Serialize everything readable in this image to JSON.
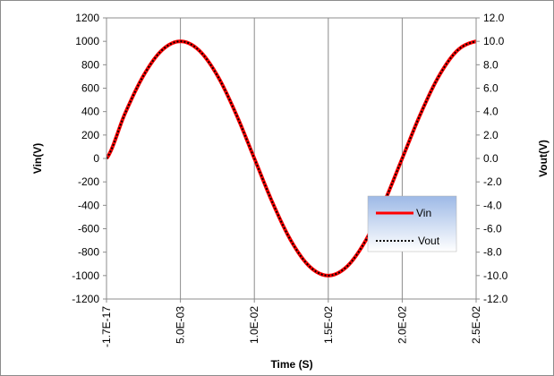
{
  "chart_data": {
    "type": "line",
    "title": "",
    "xlabel": "Time (S)",
    "ylabel_left": "Vin(V)",
    "ylabel_right": "Vout(V)",
    "xlim": [
      -1.7e-17,
      0.025
    ],
    "ylim_left": [
      -1200,
      1200
    ],
    "ylim_right": [
      -12,
      12
    ],
    "x_ticks": [
      -1.7e-17,
      0.005,
      0.01,
      0.015,
      0.02,
      0.025
    ],
    "x_tick_labels": [
      "-1.7E-17",
      "5.0E-03",
      "1.0E-02",
      "1.5E-02",
      "2.0E-02",
      "2.5E-02"
    ],
    "y_left_ticks": [
      1200,
      1000,
      800,
      600,
      400,
      200,
      0,
      -200,
      -400,
      -600,
      -800,
      -1000,
      -1200
    ],
    "y_left_tick_labels": [
      "1200",
      "1000",
      "800",
      "600",
      "400",
      "200",
      "0",
      "-200",
      "-400",
      "-600",
      "-800",
      "-1000",
      "-1200"
    ],
    "y_right_ticks": [
      12,
      10,
      8,
      6,
      4,
      2,
      0,
      -2,
      -4,
      -6,
      -8,
      -10,
      -12
    ],
    "y_right_tick_labels": [
      "12.0",
      "10.0",
      "8.0",
      "6.0",
      "4.0",
      "2.0",
      "0.0",
      "-2.0",
      "-4.0",
      "-6.0",
      "-8.0",
      "-10.0",
      "-12.0"
    ],
    "grid": "vertical",
    "legend_position": "bottom-right",
    "series": [
      {
        "name": "Vin",
        "axis": "left",
        "color": "#ff0000",
        "style": "solid",
        "x": [
          0,
          0.00125,
          0.0025,
          0.00375,
          0.005,
          0.00625,
          0.0075,
          0.00875,
          0.01,
          0.01125,
          0.0125,
          0.01375,
          0.015,
          0.01625,
          0.0175,
          0.01875,
          0.02,
          0.02125,
          0.0225,
          0.02375,
          0.025
        ],
        "y": [
          0,
          383,
          707,
          924,
          1000,
          924,
          707,
          383,
          0,
          -383,
          -707,
          -924,
          -1000,
          -924,
          -707,
          -383,
          0,
          383,
          707,
          924,
          1000
        ]
      },
      {
        "name": "Vout",
        "axis": "right",
        "color": "#000000",
        "style": "dotted",
        "x": [
          0,
          0.00125,
          0.0025,
          0.00375,
          0.005,
          0.00625,
          0.0075,
          0.00875,
          0.01,
          0.01125,
          0.0125,
          0.01375,
          0.015,
          0.01625,
          0.0175,
          0.01875,
          0.02,
          0.02125,
          0.0225,
          0.02375,
          0.025
        ],
        "y": [
          0,
          3.83,
          7.07,
          9.24,
          10.0,
          9.24,
          7.07,
          3.83,
          0,
          -3.83,
          -7.07,
          -9.24,
          -10.0,
          -9.24,
          -7.07,
          -3.83,
          0,
          3.83,
          7.07,
          9.24,
          10.0
        ]
      }
    ]
  }
}
